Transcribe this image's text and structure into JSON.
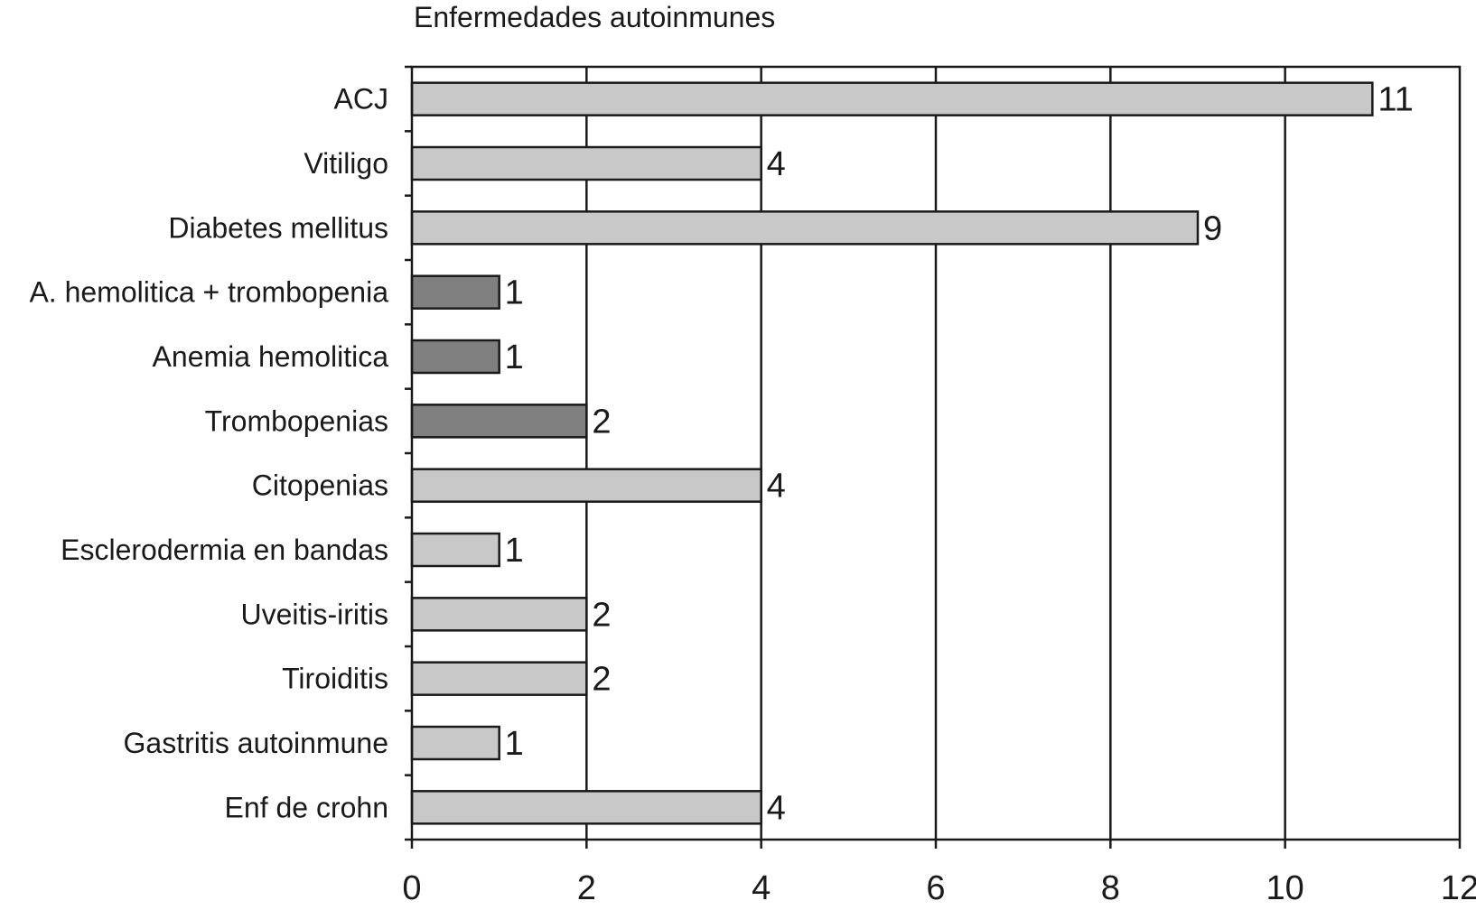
{
  "chart_data": {
    "type": "bar",
    "orientation": "horizontal",
    "title": "Enfermedades autoinmunes",
    "xlabel": "",
    "ylabel": "",
    "categories": [
      "ACJ",
      "Vitiligo",
      "Diabetes mellitus",
      "A. hemolitica + trombopenia",
      "Anemia hemolitica",
      "Trombopenias",
      "Citopenias",
      "Esclerodermia en bandas",
      "Uveitis-iritis",
      "Tiroiditis",
      "Gastritis autoinmune",
      "Enf de crohn"
    ],
    "values": [
      11,
      4,
      9,
      1,
      1,
      2,
      4,
      1,
      2,
      2,
      1,
      4
    ],
    "data_labels": [
      "11",
      "4",
      "9",
      "1",
      "1",
      "2",
      "4",
      "1",
      "2",
      "2",
      "1",
      "4"
    ],
    "bar_colors": [
      "#c8c8c8",
      "#c8c8c8",
      "#c8c8c8",
      "#808080",
      "#808080",
      "#808080",
      "#c8c8c8",
      "#c8c8c8",
      "#c8c8c8",
      "#c8c8c8",
      "#c8c8c8",
      "#c8c8c8"
    ],
    "xlim": [
      0,
      12
    ],
    "xticks": [
      0,
      2,
      4,
      6,
      8,
      10,
      12
    ],
    "xtick_labels": [
      "0",
      "2",
      "4",
      "6",
      "8",
      "10",
      "12"
    ],
    "grid": "vertical",
    "legend": "none"
  }
}
